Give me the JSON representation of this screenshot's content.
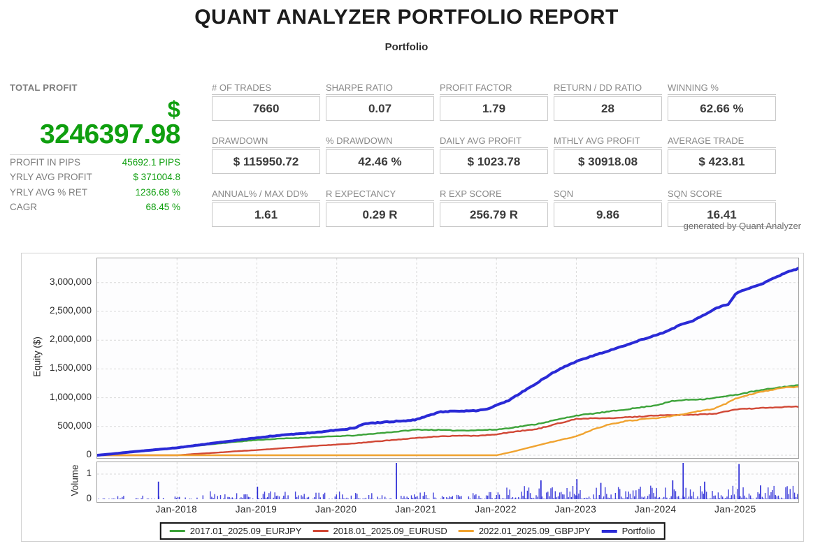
{
  "header": {
    "title": "QUANT ANALYZER PORTFOLIO REPORT",
    "subtitle": "Portfolio"
  },
  "total_profit": {
    "label": "TOTAL PROFIT",
    "currency_symbol": "$",
    "value": "3246397.98",
    "rows": [
      {
        "label": "PROFIT IN PIPS",
        "value": "45692.1 PIPS"
      },
      {
        "label": "YRLY AVG PROFIT",
        "value": "$ 371004.8"
      },
      {
        "label": "YRLY AVG % RET",
        "value": "1236.68 %"
      },
      {
        "label": "CAGR",
        "value": "68.45 %"
      }
    ]
  },
  "stats": {
    "cells": [
      {
        "label": "# OF TRADES",
        "value": "7660"
      },
      {
        "label": "SHARPE RATIO",
        "value": "0.07"
      },
      {
        "label": "PROFIT FACTOR",
        "value": "1.79"
      },
      {
        "label": "RETURN / DD RATIO",
        "value": "28"
      },
      {
        "label": "WINNING %",
        "value": "62.66 %"
      },
      {
        "label": "DRAWDOWN",
        "value": "$ 115950.72"
      },
      {
        "label": "% DRAWDOWN",
        "value": "42.46 %"
      },
      {
        "label": "DAILY AVG PROFIT",
        "value": "$ 1023.78"
      },
      {
        "label": "MTHLY AVG PROFIT",
        "value": "$ 30918.08"
      },
      {
        "label": "AVERAGE TRADE",
        "value": "$ 423.81"
      },
      {
        "label": "ANNUAL% / MAX DD%",
        "value": "1.61"
      },
      {
        "label": "R EXPECTANCY",
        "value": "0.29 R"
      },
      {
        "label": "R EXP SCORE",
        "value": "256.79 R"
      },
      {
        "label": "SQN",
        "value": "9.86"
      },
      {
        "label": "SQN SCORE",
        "value": "16.41"
      }
    ],
    "footer_note": "generated by Quant Analyzer"
  },
  "colors": {
    "profit_green": "#0f9f0f",
    "label_gray": "#7d7d7d",
    "value_dark": "#3a3a3a",
    "grid": "#d9d9d9",
    "series_eurjpy": "#3da33a",
    "series_eurusd": "#d14836",
    "series_gbpjpy": "#f0a330",
    "series_portfolio": "#2a2ad6"
  },
  "chart_data": {
    "type": "line",
    "ylabel": "Equity ($)",
    "x_range": [
      2017.0,
      2025.78
    ],
    "ylim": [
      0,
      3412000
    ],
    "grid": true,
    "legend_position": "bottom",
    "y_ticks": [
      {
        "label": "0",
        "value": 0
      },
      {
        "label": "500,000",
        "value": 500000
      },
      {
        "label": "1,000,000",
        "value": 1000000
      },
      {
        "label": "1,500,000",
        "value": 1500000
      },
      {
        "label": "2,000,000",
        "value": 2000000
      },
      {
        "label": "2,500,000",
        "value": 2500000
      },
      {
        "label": "3,000,000",
        "value": 3000000
      }
    ],
    "x_ticks": [
      {
        "label": "Jan-2018",
        "year": 2018
      },
      {
        "label": "Jan-2019",
        "year": 2019
      },
      {
        "label": "Jan-2020",
        "year": 2020
      },
      {
        "label": "Jan-2021",
        "year": 2021
      },
      {
        "label": "Jan-2022",
        "year": 2022
      },
      {
        "label": "Jan-2023",
        "year": 2023
      },
      {
        "label": "Jan-2024",
        "year": 2024
      },
      {
        "label": "Jan-2025",
        "year": 2025
      }
    ],
    "series": [
      {
        "name": "2017.01_2025.09_EURJPY",
        "color": "#3da33a",
        "width": 2.4,
        "points": [
          [
            2017.0,
            0
          ],
          [
            2017.25,
            30000
          ],
          [
            2017.5,
            65000
          ],
          [
            2017.75,
            95000
          ],
          [
            2018.0,
            125000
          ],
          [
            2018.25,
            165000
          ],
          [
            2018.5,
            200000
          ],
          [
            2018.75,
            235000
          ],
          [
            2019.0,
            265000
          ],
          [
            2019.25,
            285000
          ],
          [
            2019.5,
            300000
          ],
          [
            2019.75,
            315000
          ],
          [
            2020.0,
            330000
          ],
          [
            2020.25,
            345000
          ],
          [
            2020.5,
            380000
          ],
          [
            2020.75,
            410000
          ],
          [
            2021.0,
            445000
          ],
          [
            2021.25,
            440000
          ],
          [
            2021.5,
            430000
          ],
          [
            2021.75,
            435000
          ],
          [
            2022.0,
            445000
          ],
          [
            2022.25,
            490000
          ],
          [
            2022.5,
            540000
          ],
          [
            2022.75,
            615000
          ],
          [
            2023.0,
            690000
          ],
          [
            2023.25,
            730000
          ],
          [
            2023.5,
            775000
          ],
          [
            2023.75,
            820000
          ],
          [
            2024.0,
            870000
          ],
          [
            2024.2,
            940000
          ],
          [
            2024.4,
            965000
          ],
          [
            2024.6,
            975000
          ],
          [
            2024.8,
            1010000
          ],
          [
            2025.0,
            1050000
          ],
          [
            2025.2,
            1105000
          ],
          [
            2025.4,
            1150000
          ],
          [
            2025.6,
            1190000
          ],
          [
            2025.78,
            1215000
          ]
        ]
      },
      {
        "name": "2018.01_2025.09_EURUSD",
        "color": "#d14836",
        "width": 2.4,
        "points": [
          [
            2017.0,
            0
          ],
          [
            2018.0,
            0
          ],
          [
            2018.25,
            25000
          ],
          [
            2018.5,
            45000
          ],
          [
            2018.75,
            70000
          ],
          [
            2019.0,
            90000
          ],
          [
            2019.25,
            115000
          ],
          [
            2019.5,
            140000
          ],
          [
            2019.75,
            165000
          ],
          [
            2020.0,
            185000
          ],
          [
            2020.25,
            210000
          ],
          [
            2020.5,
            240000
          ],
          [
            2020.75,
            270000
          ],
          [
            2021.0,
            300000
          ],
          [
            2021.25,
            325000
          ],
          [
            2021.5,
            340000
          ],
          [
            2021.75,
            335000
          ],
          [
            2022.0,
            365000
          ],
          [
            2022.25,
            415000
          ],
          [
            2022.5,
            450000
          ],
          [
            2022.75,
            545000
          ],
          [
            2023.0,
            630000
          ],
          [
            2023.25,
            645000
          ],
          [
            2023.5,
            650000
          ],
          [
            2023.75,
            665000
          ],
          [
            2024.0,
            690000
          ],
          [
            2024.25,
            700000
          ],
          [
            2024.5,
            705000
          ],
          [
            2024.75,
            725000
          ],
          [
            2025.0,
            800000
          ],
          [
            2025.25,
            815000
          ],
          [
            2025.5,
            830000
          ],
          [
            2025.78,
            845000
          ]
        ]
      },
      {
        "name": "2022.01_2025.09_GBPJPY",
        "color": "#f0a330",
        "width": 2.4,
        "points": [
          [
            2017.0,
            0
          ],
          [
            2022.0,
            0
          ],
          [
            2022.2,
            60000
          ],
          [
            2022.4,
            130000
          ],
          [
            2022.6,
            200000
          ],
          [
            2022.8,
            265000
          ],
          [
            2023.0,
            330000
          ],
          [
            2023.2,
            440000
          ],
          [
            2023.4,
            530000
          ],
          [
            2023.6,
            590000
          ],
          [
            2023.8,
            620000
          ],
          [
            2024.0,
            645000
          ],
          [
            2024.2,
            680000
          ],
          [
            2024.4,
            730000
          ],
          [
            2024.55,
            770000
          ],
          [
            2024.7,
            800000
          ],
          [
            2024.85,
            880000
          ],
          [
            2025.0,
            990000
          ],
          [
            2025.2,
            1065000
          ],
          [
            2025.4,
            1125000
          ],
          [
            2025.6,
            1175000
          ],
          [
            2025.78,
            1190000
          ]
        ]
      },
      {
        "name": "Portfolio",
        "color": "#2a2ad6",
        "width": 4,
        "points": [
          [
            2017.0,
            0
          ],
          [
            2017.2,
            25000
          ],
          [
            2017.4,
            55000
          ],
          [
            2017.6,
            80000
          ],
          [
            2017.8,
            105000
          ],
          [
            2018.0,
            130000
          ],
          [
            2018.2,
            165000
          ],
          [
            2018.4,
            200000
          ],
          [
            2018.6,
            235000
          ],
          [
            2018.8,
            270000
          ],
          [
            2019.0,
            300000
          ],
          [
            2019.2,
            335000
          ],
          [
            2019.4,
            360000
          ],
          [
            2019.6,
            380000
          ],
          [
            2019.8,
            405000
          ],
          [
            2020.0,
            440000
          ],
          [
            2020.2,
            465000
          ],
          [
            2020.35,
            545000
          ],
          [
            2020.5,
            565000
          ],
          [
            2020.7,
            585000
          ],
          [
            2020.9,
            605000
          ],
          [
            2021.0,
            620000
          ],
          [
            2021.15,
            690000
          ],
          [
            2021.3,
            755000
          ],
          [
            2021.5,
            765000
          ],
          [
            2021.7,
            770000
          ],
          [
            2021.9,
            800000
          ],
          [
            2022.0,
            870000
          ],
          [
            2022.15,
            950000
          ],
          [
            2022.3,
            1080000
          ],
          [
            2022.5,
            1250000
          ],
          [
            2022.7,
            1430000
          ],
          [
            2022.85,
            1540000
          ],
          [
            2023.0,
            1630000
          ],
          [
            2023.2,
            1725000
          ],
          [
            2023.4,
            1815000
          ],
          [
            2023.6,
            1905000
          ],
          [
            2023.8,
            2000000
          ],
          [
            2024.0,
            2090000
          ],
          [
            2024.15,
            2160000
          ],
          [
            2024.3,
            2270000
          ],
          [
            2024.45,
            2330000
          ],
          [
            2024.6,
            2440000
          ],
          [
            2024.75,
            2560000
          ],
          [
            2024.9,
            2620000
          ],
          [
            2025.0,
            2810000
          ],
          [
            2025.15,
            2900000
          ],
          [
            2025.3,
            2960000
          ],
          [
            2025.45,
            3060000
          ],
          [
            2025.6,
            3160000
          ],
          [
            2025.78,
            3246398
          ]
        ]
      }
    ],
    "volume": {
      "ylabel": "Volume",
      "ylim": [
        0,
        1.58
      ],
      "y_ticks": [
        {
          "label": "0",
          "value": 0
        },
        {
          "label": "1",
          "value": 1
        }
      ],
      "spikes": [
        [
          2017.76,
          0.7
        ],
        [
          2019.0,
          0.5
        ],
        [
          2020.74,
          1.47
        ],
        [
          2022.55,
          0.75
        ],
        [
          2023.0,
          0.8
        ],
        [
          2023.3,
          0.65
        ],
        [
          2024.2,
          0.75
        ],
        [
          2024.33,
          1.55
        ],
        [
          2024.6,
          0.7
        ],
        [
          2025.03,
          1.4
        ],
        [
          2025.3,
          0.55
        ]
      ],
      "profile": [
        {
          "from": 2017.0,
          "to": 2018.4,
          "density": 0.55,
          "max": 0.14
        },
        {
          "from": 2018.4,
          "to": 2020.6,
          "density": 0.75,
          "max": 0.3
        },
        {
          "from": 2020.6,
          "to": 2022.0,
          "density": 0.7,
          "max": 0.28
        },
        {
          "from": 2022.0,
          "to": 2025.78,
          "density": 0.97,
          "max": 0.52
        }
      ]
    }
  }
}
